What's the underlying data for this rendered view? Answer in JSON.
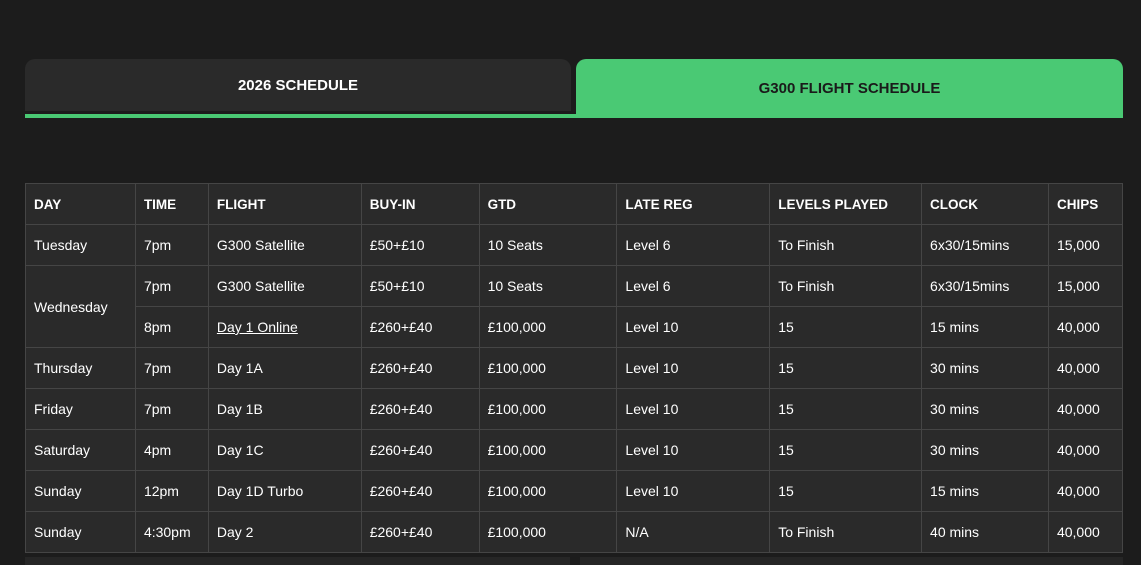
{
  "tabs": [
    {
      "label": "2026 SCHEDULE",
      "active": false
    },
    {
      "label": "G300 FLIGHT SCHEDULE",
      "active": true
    }
  ],
  "colors": {
    "accent": "#4ac974",
    "background": "#1c1c1c",
    "table": "#2a2a2a"
  },
  "table": {
    "headers": [
      "DAY",
      "TIME",
      "FLIGHT",
      "BUY-IN",
      "GTD",
      "LATE REG",
      "LEVELS PLAYED",
      "CLOCK",
      "CHIPS"
    ],
    "rows": [
      [
        "Tuesday",
        "7pm",
        "G300 Satellite",
        "£50+£10",
        "10 Seats",
        "Level 6",
        "To Finish",
        "6x30/15mins",
        "15,000"
      ],
      [
        "Wednesday",
        "7pm",
        "G300 Satellite",
        "£50+£10",
        "10 Seats",
        "Level 6",
        "To Finish",
        "6x30/15mins",
        "15,000"
      ],
      [
        "",
        "8pm",
        "Day 1 Online",
        "£260+£40",
        "£100,000",
        "Level 10",
        "15",
        "15 mins",
        "40,000"
      ],
      [
        "Thursday",
        "7pm",
        "Day 1A",
        "£260+£40",
        "£100,000",
        "Level 10",
        "15",
        "30 mins",
        "40,000"
      ],
      [
        "Friday",
        "7pm",
        "Day 1B",
        "£260+£40",
        "£100,000",
        "Level 10",
        "15",
        "30 mins",
        "40,000"
      ],
      [
        "Saturday",
        "4pm",
        "Day 1C",
        "£260+£40",
        "£100,000",
        "Level 10",
        "15",
        "30 mins",
        "40,000"
      ],
      [
        "Sunday",
        "12pm",
        "Day 1D Turbo",
        "£260+£40",
        "£100,000",
        "Level 10",
        "15",
        "15 mins",
        "40,000"
      ],
      [
        "Sunday",
        "4:30pm",
        "Day 2",
        "£260+£40",
        "£100,000",
        "N/A",
        "To Finish",
        "40 mins",
        "40,000"
      ]
    ]
  }
}
